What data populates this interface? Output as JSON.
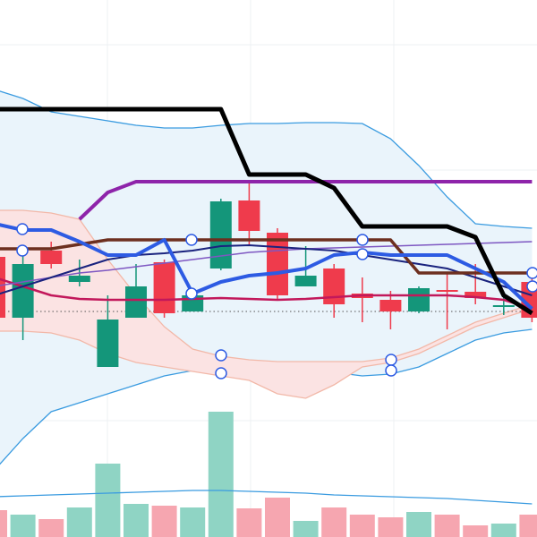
{
  "chart_data": {
    "type": "candlestick",
    "categories": [
      null,
      null,
      null,
      null,
      null,
      null,
      null,
      null,
      null,
      null,
      null,
      null,
      null,
      null,
      null,
      null,
      null,
      null,
      null,
      null
    ],
    "ylim": [
      0,
      600
    ],
    "yticks": [
      550,
      410,
      270,
      130
    ],
    "grid": true,
    "up_color": "#14967a",
    "down_color": "#ef3b4c",
    "open": [
      313,
      245,
      320,
      285,
      190,
      245,
      307,
      252,
      300,
      376,
      340,
      280,
      300,
      272,
      265,
      252,
      276,
      274,
      257,
      285
    ],
    "high": [
      318,
      315,
      330,
      310,
      270,
      305,
      310,
      272,
      378,
      395,
      345,
      325,
      305,
      290,
      275,
      280,
      295,
      305,
      270,
      290
    ],
    "low": [
      240,
      220,
      300,
      280,
      190,
      245,
      245,
      252,
      298,
      325,
      265,
      280,
      245,
      240,
      232,
      250,
      232,
      260,
      248,
      240
    ],
    "close": [
      245,
      305,
      305,
      292,
      243,
      280,
      250,
      270,
      375,
      342,
      270,
      292,
      260,
      267,
      252,
      278,
      274,
      267,
      259,
      245
    ],
    "bands": [
      {
        "upper": [
          500,
          490,
          475,
          470,
          465,
          460,
          457,
          457,
          460,
          462,
          462,
          463,
          463,
          462,
          445,
          415,
          380,
          350,
          347,
          345
        ],
        "lower": [
          75,
          110,
          140,
          150,
          160,
          170,
          180,
          186,
          187,
          188,
          187,
          186,
          184,
          180,
          182,
          190,
          205,
          220,
          228,
          232
        ],
        "color": "#3a9be0",
        "fill": "#eaf4fb"
      },
      {
        "upper": [
          365,
          365,
          362,
          355,
          310,
          270,
          235,
          210,
          202,
          198,
          196,
          196,
          196,
          196,
          200,
          210,
          225,
          240,
          250,
          260
        ],
        "lower": [
          230,
          230,
          228,
          220,
          205,
          195,
          190,
          185,
          180,
          175,
          160,
          155,
          170,
          190,
          195,
          205,
          220,
          235,
          245,
          255
        ],
        "color": "#f2b8a8",
        "fill": "#fbe3e3"
      }
    ],
    "series": [
      {
        "color": "#c2185b",
        "line_width": 2.5,
        "values": [
          290,
          280,
          270,
          266,
          265,
          265,
          265,
          266,
          267,
          266,
          265,
          266,
          268,
          270,
          270,
          270,
          270,
          268,
          265,
          255
        ]
      },
      {
        "color": "#7e57c2",
        "line_width": 1.5,
        "values": [
          280,
          285,
          290,
          295,
          298,
          302,
          306,
          310,
          314,
          318,
          320,
          322,
          323,
          324,
          325,
          326,
          327,
          328,
          329,
          330
        ]
      },
      {
        "color": "#1a237e",
        "line_width": 2,
        "values": [
          270,
          280,
          290,
          300,
          310,
          315,
          317,
          320,
          325,
          326,
          324,
          322,
          320,
          315,
          310,
          305,
          300,
          290,
          280,
          270
        ]
      },
      {
        "color": "#6d2f1f",
        "line_width": 3.5,
        "values": [
          322,
          322,
          322,
          327,
          332,
          332,
          332,
          332,
          332,
          332,
          332,
          332,
          332,
          332,
          332,
          295,
          295,
          295,
          295,
          295
        ]
      },
      {
        "color": "#2d5be3",
        "line_width": 4,
        "values": [
          350,
          343,
          343,
          330,
          315,
          315,
          332,
          272,
          285,
          292,
          295,
          300,
          315,
          318,
          315,
          315,
          315,
          300,
          285,
          255
        ]
      },
      {
        "color": "#8e24aa",
        "line_width": 4,
        "values": [
          null,
          null,
          null,
          355,
          385,
          397,
          397,
          397,
          397,
          397,
          397,
          397,
          397,
          397,
          397,
          397,
          397,
          397,
          397,
          397
        ]
      },
      {
        "color": "#000000",
        "line_width": 5,
        "values": [
          478,
          478,
          478,
          478,
          478,
          478,
          478,
          478,
          478,
          405,
          405,
          405,
          390,
          347,
          347,
          347,
          347,
          335,
          270,
          250
        ]
      }
    ],
    "volume": {
      "ylim": [
        0,
        150
      ],
      "up_color": "#8fd4c4",
      "down_color": "#f6a6b0",
      "values": [
        30,
        25,
        20,
        33,
        82,
        37,
        35,
        33,
        140,
        32,
        44,
        18,
        33,
        25,
        22,
        28,
        25,
        13,
        15,
        25
      ],
      "average": {
        "color": "#3a9be0",
        "values": [
          45,
          46,
          47,
          48,
          49,
          50,
          51,
          52,
          52,
          51,
          50,
          49,
          47,
          46,
          45,
          44,
          43,
          41,
          39,
          37
        ]
      }
    }
  }
}
